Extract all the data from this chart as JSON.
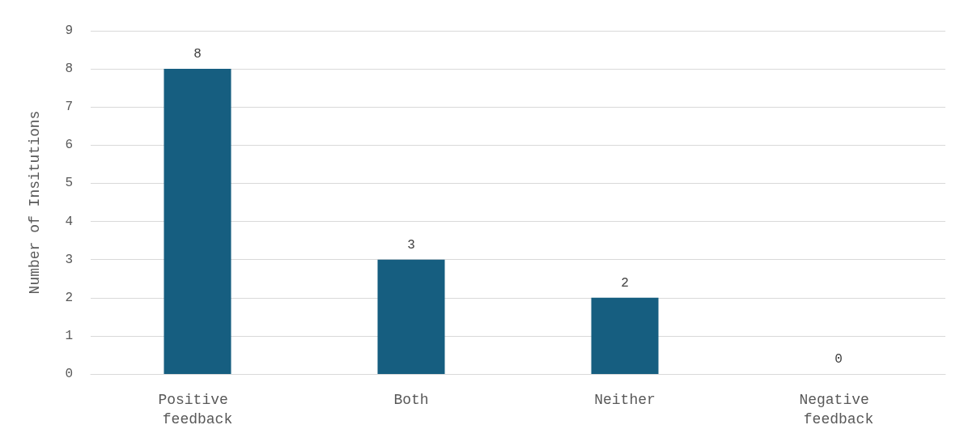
{
  "chart_data": {
    "type": "bar",
    "ylabel": "Number of Insitutions",
    "categories": [
      "Positive feedback",
      "Both",
      "Neither",
      "Negative feedback"
    ],
    "values": [
      8,
      3,
      2,
      0
    ],
    "color": "#165e80",
    "ylim": [
      0,
      9
    ],
    "yticks": [
      0,
      1,
      2,
      3,
      4,
      5,
      6,
      7,
      8,
      9
    ],
    "grid": "y",
    "data_labels": true
  }
}
